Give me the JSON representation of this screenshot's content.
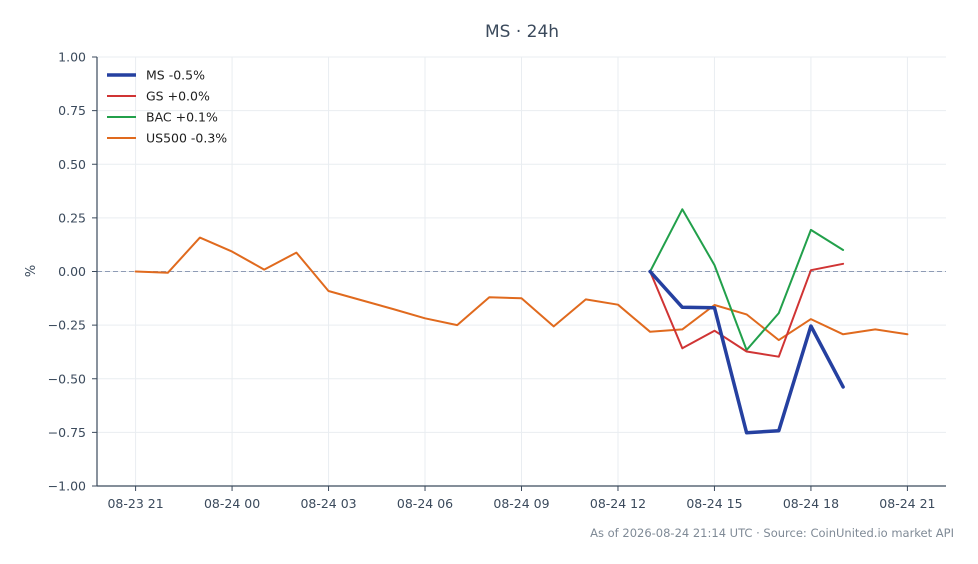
{
  "chart_data": {
    "type": "line",
    "title": "MS · 24h",
    "ylabel": "%",
    "xlabel": "",
    "ylim": [
      -1.0,
      1.0
    ],
    "yticks": [
      1.0,
      0.75,
      0.5,
      0.25,
      0.0,
      -0.25,
      -0.5,
      -0.75,
      -1.0
    ],
    "yticklabels": [
      "1.00",
      "0.75",
      "0.50",
      "0.25",
      "0.00",
      "−0.25",
      "−0.50",
      "−0.75",
      "−1.00"
    ],
    "x_hours_range": [
      -1.2,
      25.2
    ],
    "xticks": [
      0,
      3,
      6,
      9,
      12,
      15,
      18,
      21,
      24
    ],
    "xticklabels": [
      "08-23 21",
      "08-24 00",
      "08-24 03",
      "08-24 06",
      "08-24 09",
      "08-24 12",
      "08-24 15",
      "08-24 18",
      "08-24 21"
    ],
    "grid": true,
    "legend_position": "top-left",
    "zero_line": true,
    "series": [
      {
        "name": "MS -0.5%",
        "color": "#2540a0",
        "width": 3.5,
        "x": [
          16,
          17,
          18,
          19,
          20,
          21,
          22
        ],
        "y": [
          0.0,
          -0.167,
          -0.169,
          -0.752,
          -0.742,
          -0.254,
          -0.538
        ]
      },
      {
        "name": "GS +0.0%",
        "color": "#d03434",
        "width": 2,
        "x": [
          16,
          17,
          18,
          19,
          20,
          21,
          22
        ],
        "y": [
          0.0,
          -0.358,
          -0.276,
          -0.373,
          -0.397,
          0.006,
          0.036
        ]
      },
      {
        "name": "BAC +0.1%",
        "color": "#22a04b",
        "width": 2,
        "x": [
          16,
          17,
          18,
          19,
          20,
          21,
          22
        ],
        "y": [
          0.0,
          0.29,
          0.03,
          -0.366,
          -0.194,
          0.194,
          0.1
        ]
      },
      {
        "name": "US500 -0.3%",
        "color": "#e06a1e",
        "width": 2,
        "x": [
          0,
          1,
          2,
          3,
          4,
          5,
          6,
          7,
          8,
          9,
          10,
          11,
          12,
          13,
          14,
          15,
          16,
          17,
          18,
          19,
          20,
          21,
          22,
          23,
          24
        ],
        "y": [
          0.0,
          -0.006,
          0.158,
          0.093,
          0.009,
          0.088,
          -0.091,
          -0.133,
          -0.175,
          -0.218,
          -0.25,
          -0.12,
          -0.125,
          -0.256,
          -0.13,
          -0.155,
          -0.281,
          -0.27,
          -0.156,
          -0.2,
          -0.32,
          -0.222,
          -0.293,
          -0.27,
          -0.293
        ]
      }
    ]
  },
  "footer": "As of 2026-08-24 21:14 UTC · Source: CoinUnited.io market API"
}
